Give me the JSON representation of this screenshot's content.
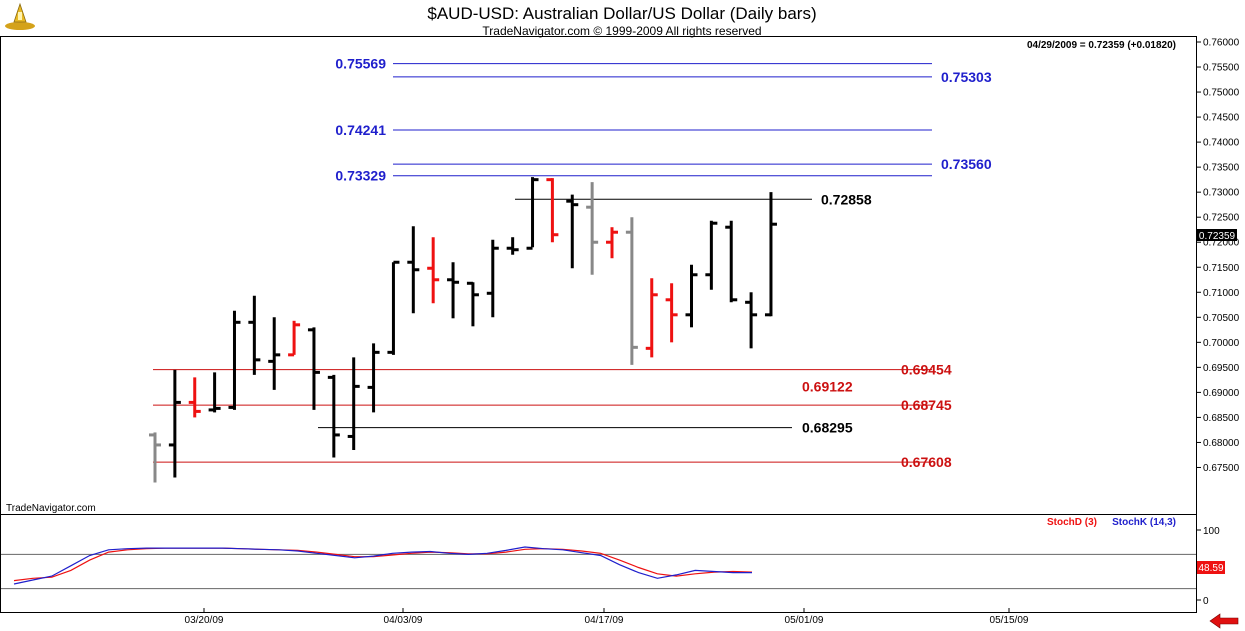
{
  "header": {
    "title": "$AUD-USD:  Australian Dollar/US Dollar  (Daily bars)",
    "subtitle": "TradeNavigator.com © 1999-2009 All rights reserved",
    "quote": "04/29/2009 = 0.72359 (+0.01820)",
    "watermark": "TradeNavigator.com"
  },
  "colors": {
    "up": "#000000",
    "down": "#ee1111",
    "neutral": "#888888",
    "fib_blue": "#1f1fcc",
    "fib_red": "#cc1111",
    "stochD": "#ee1111",
    "stochK": "#1f1fcc"
  },
  "chart_data": {
    "type": "ohlc",
    "price_axis": {
      "min": 0.67,
      "max": 0.76,
      "tick_labels": [
        "0.76000",
        "0.75500",
        "0.75000",
        "0.74500",
        "0.74000",
        "0.73500",
        "0.73000",
        "0.72500",
        "0.72000",
        "0.71500",
        "0.71000",
        "0.70500",
        "0.70000",
        "0.69500",
        "0.69000",
        "0.68500",
        "0.68000",
        "0.67500"
      ],
      "last_price_label": "0.72359"
    },
    "date_axis": {
      "labels": [
        "03/20/09",
        "04/03/09",
        "04/17/09",
        "05/01/09",
        "05/15/09"
      ]
    },
    "bars": [
      {
        "o": 0.6815,
        "h": 0.682,
        "l": 0.672,
        "c": 0.6795,
        "color": "neutral"
      },
      {
        "o": 0.6795,
        "h": 0.6945,
        "l": 0.673,
        "c": 0.688,
        "color": "up"
      },
      {
        "o": 0.688,
        "h": 0.693,
        "l": 0.685,
        "c": 0.6862,
        "color": "down"
      },
      {
        "o": 0.6865,
        "h": 0.694,
        "l": 0.686,
        "c": 0.6868,
        "color": "up"
      },
      {
        "o": 0.687,
        "h": 0.7063,
        "l": 0.6865,
        "c": 0.704,
        "color": "up"
      },
      {
        "o": 0.704,
        "h": 0.7093,
        "l": 0.6935,
        "c": 0.6965,
        "color": "up"
      },
      {
        "o": 0.6962,
        "h": 0.705,
        "l": 0.6905,
        "c": 0.6975,
        "color": "up"
      },
      {
        "o": 0.6975,
        "h": 0.7043,
        "l": 0.6975,
        "c": 0.7035,
        "color": "down"
      },
      {
        "o": 0.7025,
        "h": 0.703,
        "l": 0.6865,
        "c": 0.694,
        "color": "up"
      },
      {
        "o": 0.693,
        "h": 0.6935,
        "l": 0.677,
        "c": 0.6815,
        "color": "up"
      },
      {
        "o": 0.6812,
        "h": 0.697,
        "l": 0.6785,
        "c": 0.6912,
        "color": "up"
      },
      {
        "o": 0.691,
        "h": 0.6998,
        "l": 0.686,
        "c": 0.698,
        "color": "up"
      },
      {
        "o": 0.698,
        "h": 0.716,
        "l": 0.6975,
        "c": 0.716,
        "color": "up"
      },
      {
        "o": 0.716,
        "h": 0.7232,
        "l": 0.7058,
        "c": 0.7145,
        "color": "up"
      },
      {
        "o": 0.7148,
        "h": 0.721,
        "l": 0.7078,
        "c": 0.7125,
        "color": "down"
      },
      {
        "o": 0.7125,
        "h": 0.716,
        "l": 0.7048,
        "c": 0.712,
        "color": "up"
      },
      {
        "o": 0.7118,
        "h": 0.712,
        "l": 0.7032,
        "c": 0.7095,
        "color": "up"
      },
      {
        "o": 0.7098,
        "h": 0.7205,
        "l": 0.705,
        "c": 0.7188,
        "color": "up"
      },
      {
        "o": 0.7188,
        "h": 0.721,
        "l": 0.7175,
        "c": 0.7185,
        "color": "up"
      },
      {
        "o": 0.7188,
        "h": 0.733,
        "l": 0.719,
        "c": 0.7325,
        "color": "up"
      },
      {
        "o": 0.7325,
        "h": 0.7328,
        "l": 0.72,
        "c": 0.7215,
        "color": "down"
      },
      {
        "o": 0.7282,
        "h": 0.7295,
        "l": 0.7148,
        "c": 0.7275,
        "color": "up"
      },
      {
        "o": 0.727,
        "h": 0.732,
        "l": 0.7135,
        "c": 0.72,
        "color": "neutral"
      },
      {
        "o": 0.72,
        "h": 0.723,
        "l": 0.7168,
        "c": 0.722,
        "color": "down"
      },
      {
        "o": 0.722,
        "h": 0.725,
        "l": 0.6955,
        "c": 0.699,
        "color": "neutral"
      },
      {
        "o": 0.6988,
        "h": 0.7128,
        "l": 0.697,
        "c": 0.7095,
        "color": "down"
      },
      {
        "o": 0.7085,
        "h": 0.7118,
        "l": 0.7,
        "c": 0.7055,
        "color": "down"
      },
      {
        "o": 0.7055,
        "h": 0.7155,
        "l": 0.703,
        "c": 0.7135,
        "color": "up"
      },
      {
        "o": 0.7135,
        "h": 0.7243,
        "l": 0.7105,
        "c": 0.7238,
        "color": "up"
      },
      {
        "o": 0.723,
        "h": 0.7243,
        "l": 0.708,
        "c": 0.7085,
        "color": "up"
      },
      {
        "o": 0.708,
        "h": 0.71,
        "l": 0.6988,
        "c": 0.7055,
        "color": "up"
      },
      {
        "o": 0.7055,
        "h": 0.73,
        "l": 0.7052,
        "c": 0.7236,
        "color": "up"
      }
    ],
    "levels": [
      {
        "value": 0.75569,
        "label": "0.75569",
        "color": "fib_blue",
        "side": "left"
      },
      {
        "value": 0.75303,
        "label": "0.75303",
        "color": "fib_blue",
        "side": "right"
      },
      {
        "value": 0.74241,
        "label": "0.74241",
        "color": "fib_blue",
        "side": "left"
      },
      {
        "value": 0.7356,
        "label": "0.73560",
        "color": "fib_blue",
        "side": "right"
      },
      {
        "value": 0.73329,
        "label": "0.73329",
        "color": "fib_blue",
        "side": "left"
      },
      {
        "value": 0.72858,
        "label": "0.72858",
        "color": "up",
        "side": "right"
      },
      {
        "value": 0.69454,
        "label": "0.69454",
        "color": "fib_red",
        "side": "right"
      },
      {
        "value": 0.69122,
        "label": "0.69122",
        "color": "fib_red",
        "side": "text"
      },
      {
        "value": 0.68745,
        "label": "0.68745",
        "color": "fib_red",
        "side": "right"
      },
      {
        "value": 0.68295,
        "label": "0.68295",
        "color": "up",
        "side": "right"
      },
      {
        "value": 0.67608,
        "label": "0.67608",
        "color": "fib_red",
        "side": "right"
      }
    ],
    "stochastic": {
      "axis_labels": [
        "100",
        "0"
      ],
      "d_label": "StochD (3)",
      "k_label": "StochK (14,3)",
      "last_value_label": "48.59",
      "k": [
        28,
        35,
        42,
        60,
        78,
        88,
        90,
        91,
        91,
        91,
        91,
        91,
        90,
        89,
        88,
        86,
        82,
        78,
        74,
        77,
        82,
        84,
        85,
        82,
        80,
        82,
        87,
        93,
        90,
        88,
        83,
        78,
        62,
        48,
        38,
        44,
        52,
        50,
        48,
        48
      ],
      "d": [
        34,
        38,
        40,
        52,
        70,
        84,
        88,
        90,
        91,
        91,
        91,
        91,
        90,
        89,
        88,
        87,
        84,
        80,
        76,
        76,
        79,
        82,
        84,
        83,
        81,
        81,
        84,
        89,
        90,
        89,
        86,
        82,
        70,
        57,
        46,
        42,
        46,
        49,
        50,
        49
      ]
    }
  }
}
